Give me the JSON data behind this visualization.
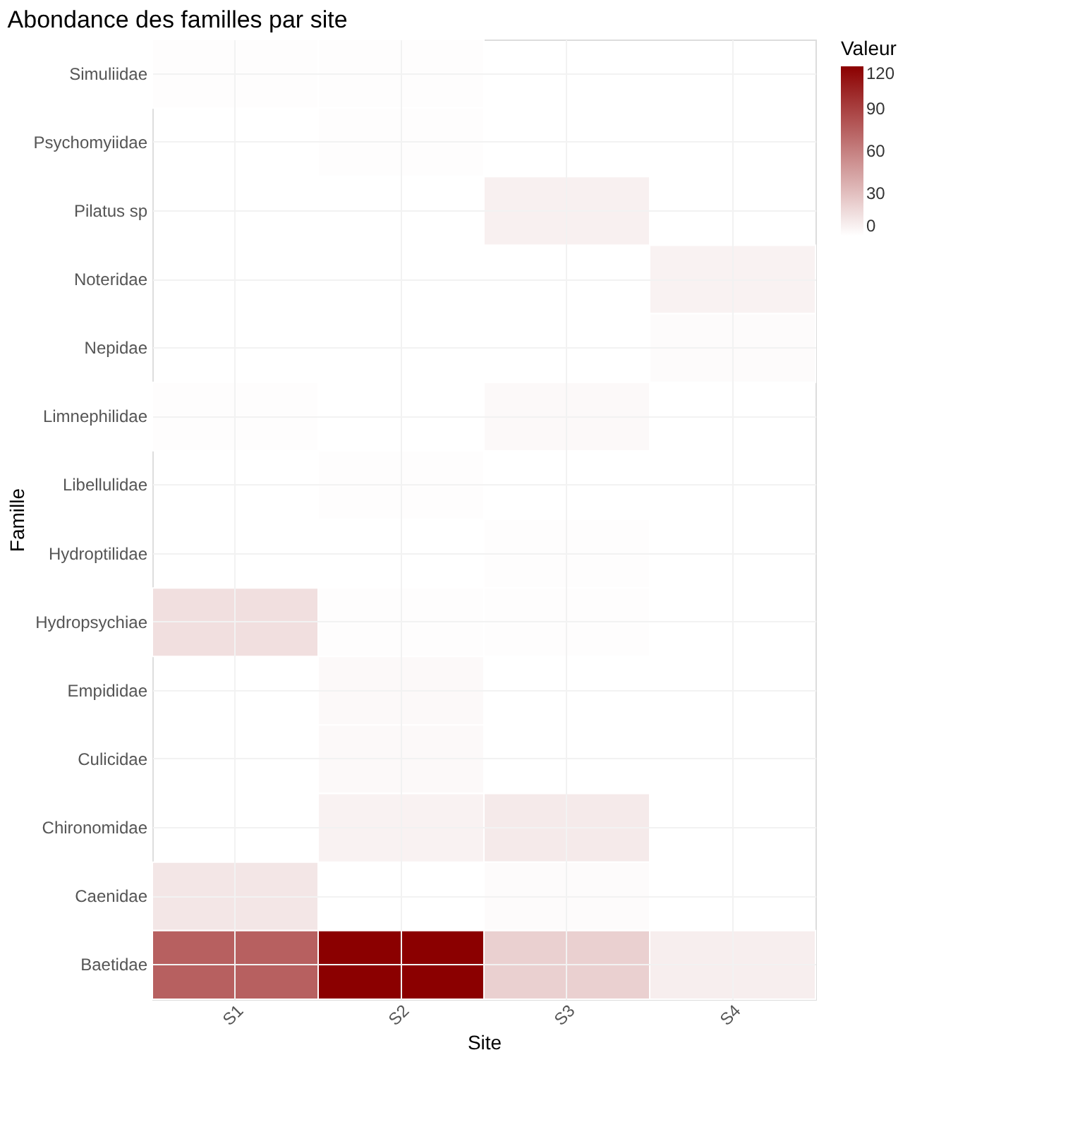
{
  "chart_data": {
    "type": "heatmap",
    "title": "Abondance des familles par site",
    "xlabel": "Site",
    "ylabel": "Famille",
    "legend_title": "Valeur",
    "categories": [
      "S1",
      "S2",
      "S3",
      "S4"
    ],
    "y_categories": [
      "Simuliidae",
      "Psychomyiidae",
      "Pilatus sp",
      "Noteridae",
      "Nepidae",
      "Limnephilidae",
      "Libellulidae",
      "Hydroptilidae",
      "Hydropsychiae",
      "Empididae",
      "Culicidae",
      "Chironomidae",
      "Caenidae",
      "Baetidae"
    ],
    "cells": [
      [
        1,
        1,
        null,
        null
      ],
      [
        null,
        1,
        null,
        null
      ],
      [
        null,
        null,
        7,
        null
      ],
      [
        null,
        null,
        null,
        6
      ],
      [
        null,
        null,
        null,
        2
      ],
      [
        1,
        null,
        3,
        null
      ],
      [
        null,
        1,
        null,
        null
      ],
      [
        null,
        null,
        1,
        null
      ],
      [
        15,
        1,
        1,
        null
      ],
      [
        null,
        3,
        null,
        null
      ],
      [
        null,
        3,
        null,
        null
      ],
      [
        null,
        6,
        10,
        null
      ],
      [
        12,
        null,
        2,
        null
      ],
      [
        75,
        120,
        22,
        8
      ]
    ],
    "colors": [
      "#ffffff",
      "#8b0000"
    ],
    "clim": [
      0,
      120
    ],
    "cticks": [
      0,
      30,
      60,
      90,
      120
    ],
    "grid": true
  }
}
